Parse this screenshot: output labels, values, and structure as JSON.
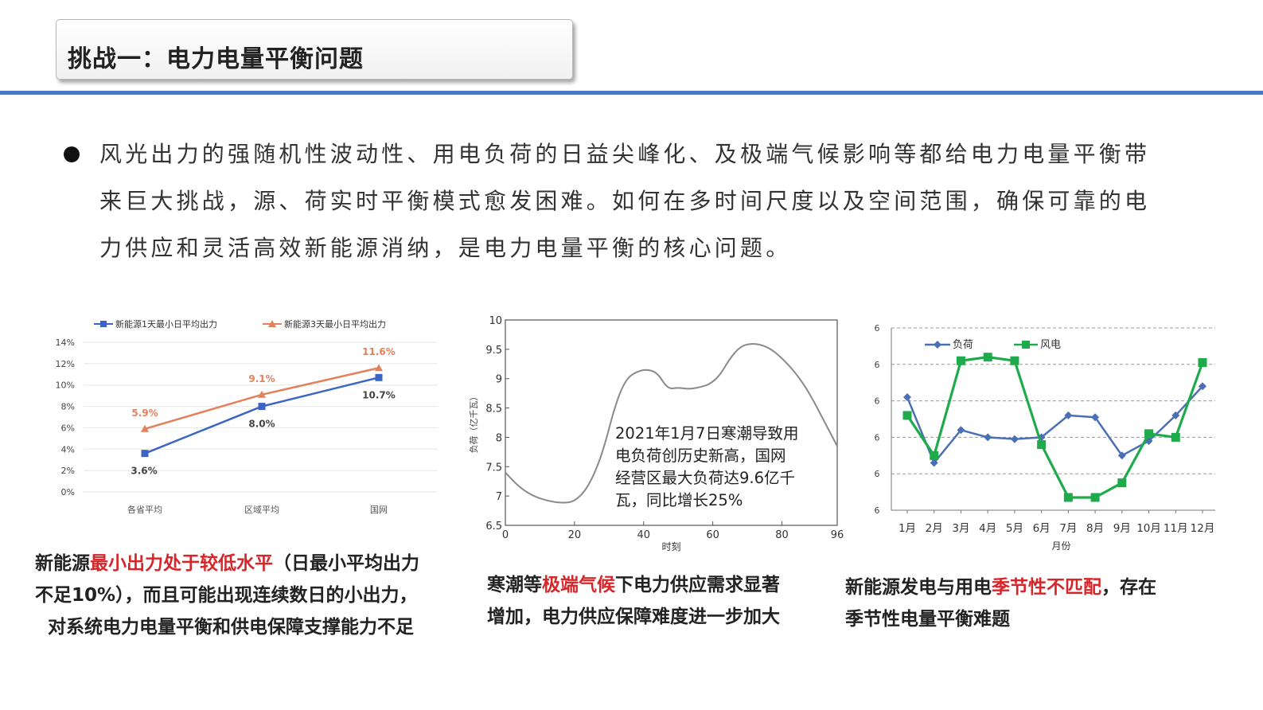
{
  "header": {
    "title": "挑战一：电力电量平衡问题"
  },
  "bullet": {
    "line1": "风光出力的强随机性波动性、用电负荷的日益尖峰化、及极端气候影响等都给电力电量平衡带",
    "line2": "来巨大挑战，源、荷实时平衡模式愈发困难。如何在多时间尺度以及空间范围，确保可靠的电",
    "line3": "力供应和灵活高效新能源消纳，是电力电量平衡的核心问题。"
  },
  "chart_data": [
    {
      "type": "line",
      "categories": [
        "各省平均",
        "区域平均",
        "国网"
      ],
      "series": [
        {
          "name": "新能源1天最小日平均出力",
          "values": [
            3.6,
            8.0,
            10.7
          ],
          "labels": [
            "3.6%",
            "8.0%",
            "10.7%"
          ],
          "color": "#3c64c2"
        },
        {
          "name": "新能源3天最小日平均出力",
          "values": [
            5.9,
            9.1,
            11.6
          ],
          "labels": [
            "5.9%",
            "9.1%",
            "11.6%"
          ],
          "color": "#e3815c"
        }
      ],
      "yticks": [
        "0%",
        "2%",
        "4%",
        "6%",
        "8%",
        "10%",
        "12%",
        "14%"
      ],
      "ylim": [
        0,
        14
      ],
      "legend": "top"
    },
    {
      "type": "line",
      "x": [
        0,
        4,
        8,
        12,
        16,
        20,
        24,
        28,
        32,
        35,
        38,
        41,
        44,
        47,
        50,
        53,
        56,
        59,
        62,
        65,
        68,
        71,
        74,
        77,
        80,
        84,
        88,
        92,
        96
      ],
      "y": [
        7.4,
        7.15,
        7.0,
        6.92,
        6.88,
        6.9,
        7.15,
        7.7,
        8.6,
        9.0,
        9.12,
        9.16,
        9.1,
        8.82,
        8.85,
        8.82,
        8.85,
        8.9,
        9.05,
        9.35,
        9.55,
        9.6,
        9.58,
        9.5,
        9.35,
        9.1,
        8.75,
        8.3,
        7.85
      ],
      "xticks": [
        "0",
        "20",
        "40",
        "60",
        "80",
        "96"
      ],
      "yticks": [
        "6.5",
        "7",
        "7.5",
        "8",
        "8.5",
        "9",
        "9.5",
        "10"
      ],
      "xlim": [
        0,
        96
      ],
      "ylim": [
        6.5,
        10
      ],
      "xlabel": "时刻",
      "ylabel": "负荷（亿千瓦）",
      "annotation": [
        "2021年1月7日寒潮导致用",
        "电负荷创历史新高，国网",
        "经营区最大负荷达9.6亿千",
        "瓦，同比增长25%"
      ]
    },
    {
      "type": "line",
      "categories": [
        "1月",
        "2月",
        "3月",
        "4月",
        "5月",
        "6月",
        "7月",
        "8月",
        "9月",
        "10月",
        "11月",
        "12月"
      ],
      "series": [
        {
          "name": "负荷",
          "values": [
            3.1,
            1.3,
            2.2,
            2.0,
            1.95,
            2.0,
            2.6,
            2.55,
            1.5,
            1.9,
            2.6,
            3.4
          ],
          "color": "#4a6fb5"
        },
        {
          "name": "风电",
          "values": [
            2.6,
            1.5,
            4.1,
            4.2,
            4.1,
            1.8,
            0.35,
            0.35,
            0.75,
            2.1,
            2.0,
            4.05
          ],
          "color": "#1faa4c"
        }
      ],
      "yticks": [
        "6",
        "6",
        "6",
        "6",
        "6",
        "6"
      ],
      "ylim": [
        0,
        5
      ],
      "xlabel": "月份",
      "legend": "top-left"
    }
  ],
  "captions": {
    "c1": {
      "p1": "新能源",
      "red": "最小出力处于较低水平",
      "p2": "（日最小平均出力",
      "line2": "不足10%），而且可能出现连续数日的小出力，",
      "line3": "对系统电力电量平衡和供电保障支撑能力不足"
    },
    "c2": {
      "p1": "寒潮等",
      "red": "极端气候",
      "p2": "下电力供应需求显著",
      "line2": "增加，电力供应保障难度进一步加大"
    },
    "c3": {
      "p1": "新能源发电与用电",
      "red": "季节性不匹配",
      "p2": "，存在",
      "line2": "季节性电量平衡难题"
    }
  }
}
